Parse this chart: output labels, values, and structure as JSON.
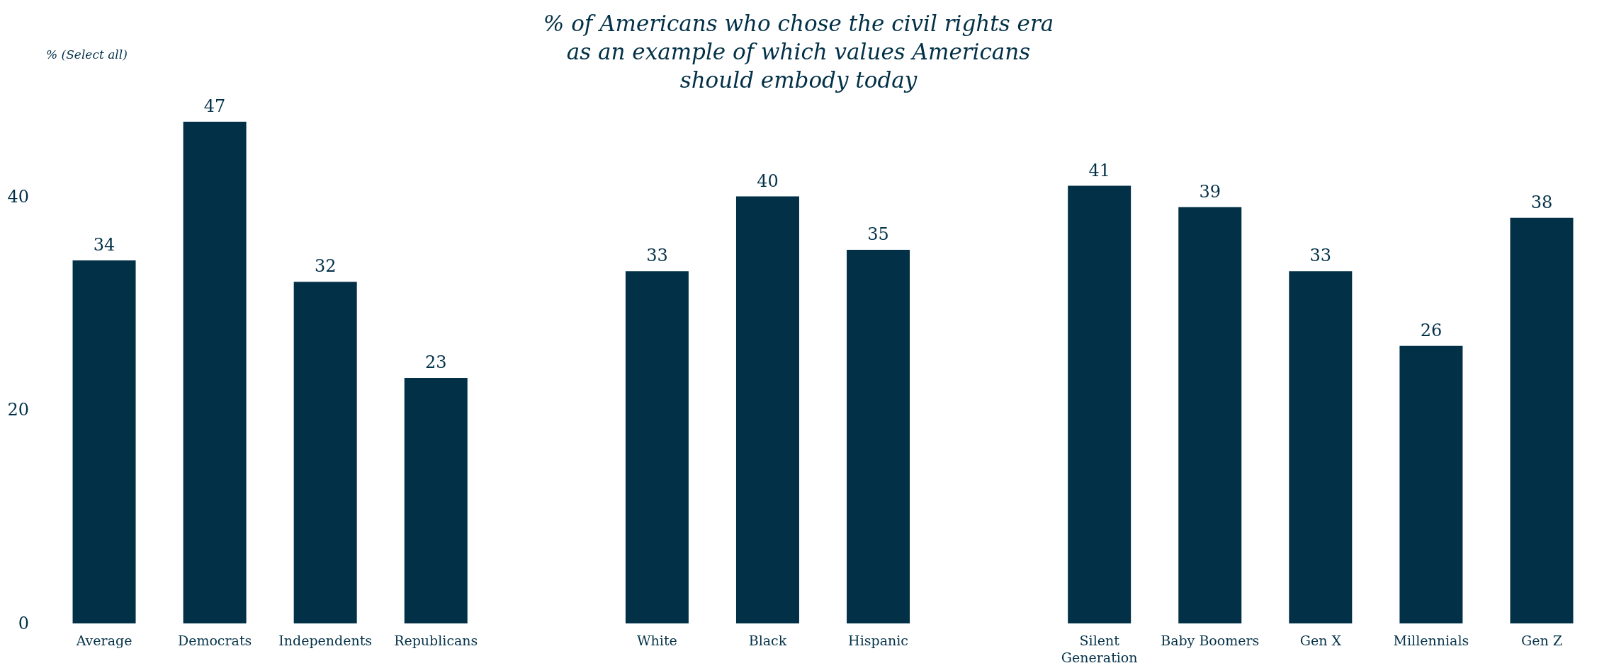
{
  "chart_data": {
    "type": "bar",
    "title": "% of Americans who chose the civil rights era\nas an example of which values Americans\nshould embody today",
    "annotations": [
      "% (Select all)"
    ],
    "ylim": [
      0,
      47
    ],
    "categories": [
      "Average",
      "Democrats",
      "Independents",
      "Republicans",
      null,
      "White",
      "Black",
      "Hispanic",
      null,
      "Silent\nGeneration",
      "Baby Boomers",
      "Gen X",
      "Millennials",
      "Gen Z"
    ],
    "values": [
      34,
      47,
      32,
      23,
      null,
      33,
      40,
      35,
      null,
      41,
      39,
      33,
      26,
      38
    ],
    "color": "#023047",
    "data_labels": true,
    "yticks": [
      0,
      20,
      40
    ],
    "grid": false
  }
}
